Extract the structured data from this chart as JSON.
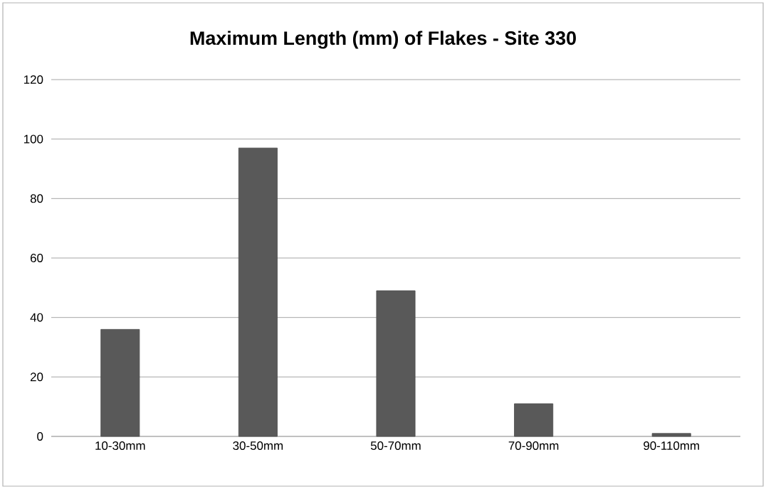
{
  "chart_data": {
    "type": "bar",
    "title": "Maximum Length (mm) of Flakes - Site 330",
    "categories": [
      "10-30mm",
      "30-50mm",
      "50-70mm",
      "70-90mm",
      "90-110mm"
    ],
    "values": [
      36,
      97,
      49,
      11,
      1
    ],
    "color": "#595959",
    "ylim": [
      0,
      120
    ],
    "yticks": [
      0,
      20,
      40,
      60,
      80,
      100,
      120
    ],
    "grid": "y"
  }
}
